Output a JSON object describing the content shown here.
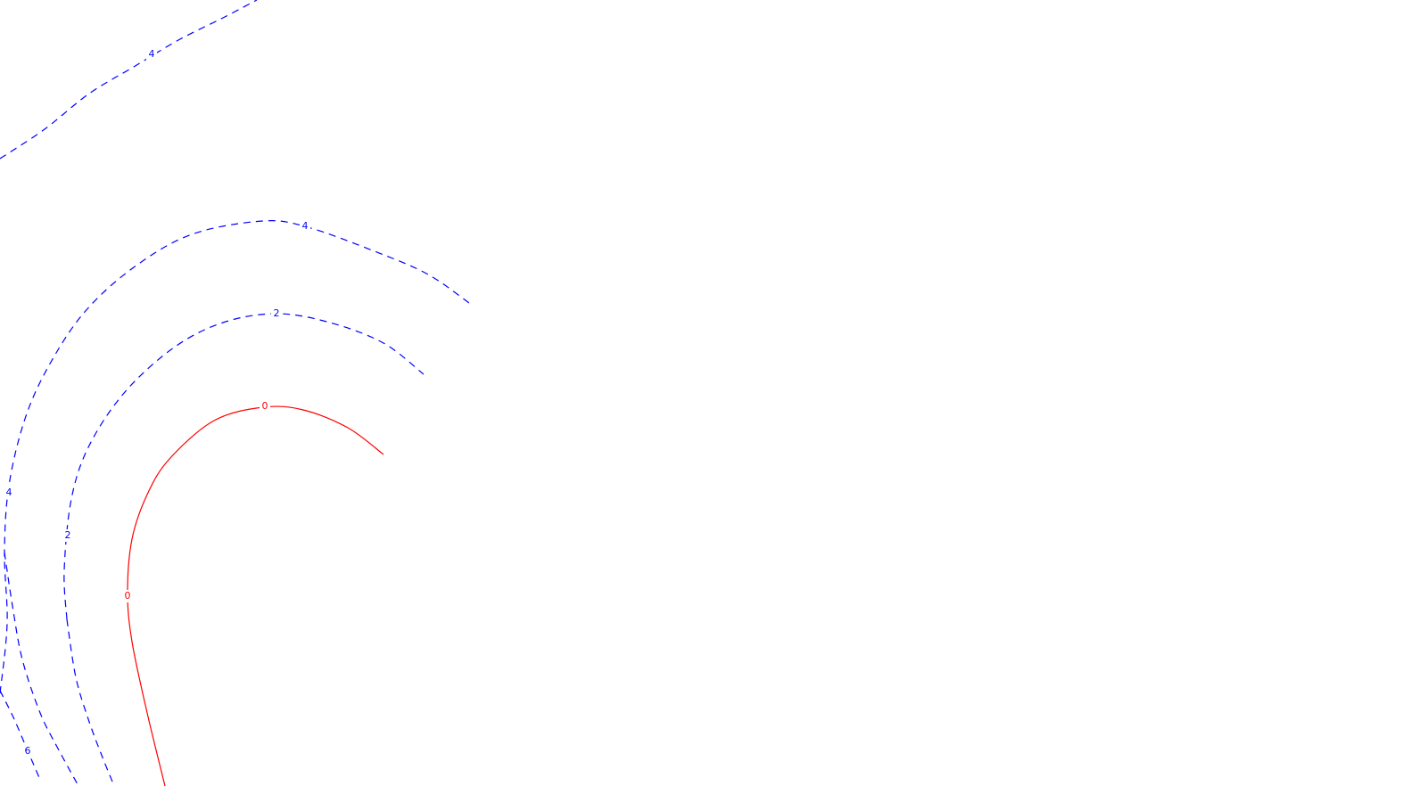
{
  "chart_data": {
    "type": "contour",
    "title": "",
    "xlabel": "",
    "ylabel": "",
    "grid": false,
    "legend": "none",
    "styles": {
      "negative": {
        "color": "#0000ff",
        "dash": "dashed"
      },
      "zero": {
        "color": "#ff0000",
        "dash": "solid"
      }
    },
    "levels": [
      {
        "level": "4",
        "style": "negative",
        "labels": [
          "4"
        ],
        "points": [
          [
            0,
            178
          ],
          [
            50,
            145
          ],
          [
            100,
            105
          ],
          [
            150,
            75
          ],
          [
            200,
            45
          ],
          [
            250,
            20
          ],
          [
            288,
            0
          ]
        ]
      },
      {
        "level": "4",
        "style": "negative",
        "labels": [
          "4",
          "4"
        ],
        "points": [
          [
            0,
            778
          ],
          [
            8,
            700
          ],
          [
            5,
            620
          ],
          [
            10,
            545
          ],
          [
            28,
            470
          ],
          [
            55,
            410
          ],
          [
            95,
            350
          ],
          [
            150,
            300
          ],
          [
            215,
            263
          ],
          [
            295,
            248
          ],
          [
            345,
            255
          ],
          [
            420,
            282
          ],
          [
            480,
            308
          ],
          [
            530,
            343
          ]
        ]
      },
      {
        "level": "2",
        "style": "negative",
        "labels": [
          "2",
          "2"
        ],
        "points": [
          [
            75,
            695
          ],
          [
            72,
            640
          ],
          [
            80,
            560
          ],
          [
            100,
            500
          ],
          [
            140,
            440
          ],
          [
            195,
            390
          ],
          [
            250,
            362
          ],
          [
            310,
            352
          ],
          [
            370,
            362
          ],
          [
            430,
            385
          ],
          [
            475,
            420
          ]
        ]
      },
      {
        "level": "0",
        "style": "zero",
        "labels": [
          "0",
          "0"
        ],
        "points": [
          [
            185,
            882
          ],
          [
            165,
            800
          ],
          [
            148,
            720
          ],
          [
            143,
            665
          ],
          [
            148,
            605
          ],
          [
            165,
            555
          ],
          [
            190,
            515
          ],
          [
            240,
            472
          ],
          [
            295,
            457
          ],
          [
            340,
            460
          ],
          [
            390,
            480
          ],
          [
            430,
            510
          ]
        ]
      },
      {
        "level": "6",
        "style": "negative",
        "labels": [
          "6"
        ],
        "points": [
          [
            0,
            775
          ],
          [
            15,
            805
          ],
          [
            30,
            840
          ],
          [
            45,
            875
          ]
        ]
      },
      {
        "level": "4",
        "style": "negative",
        "labels": [],
        "points": [
          [
            5,
            620
          ],
          [
            14,
            680
          ],
          [
            25,
            740
          ],
          [
            45,
            800
          ],
          [
            65,
            840
          ],
          [
            88,
            882
          ]
        ]
      },
      {
        "level": "2",
        "style": "negative",
        "labels": [],
        "points": [
          [
            75,
            695
          ],
          [
            85,
            760
          ],
          [
            100,
            810
          ],
          [
            115,
            850
          ],
          [
            128,
            882
          ]
        ]
      }
    ]
  }
}
